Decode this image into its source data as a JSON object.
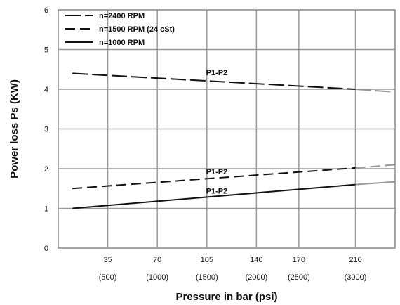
{
  "chart_data": {
    "type": "line",
    "xlabel": "Pressure in bar (psi)",
    "ylabel": "Power loss Ps (KW)",
    "xlim": [
      0,
      238
    ],
    "ylim": [
      0,
      6
    ],
    "grid": true,
    "legend_position": "top-left",
    "x_ticks": [
      {
        "value": 35,
        "label": "35",
        "sublabel": "(500)"
      },
      {
        "value": 70,
        "label": "70",
        "sublabel": "(1000)"
      },
      {
        "value": 105,
        "label": "105",
        "sublabel": "(1500)"
      },
      {
        "value": 140,
        "label": "140",
        "sublabel": "(2000)"
      },
      {
        "value": 170,
        "label": "170",
        "sublabel": "(2500)"
      },
      {
        "value": 210,
        "label": "210",
        "sublabel": "(3000)"
      }
    ],
    "y_ticks": [
      0,
      1,
      2,
      3,
      4,
      5,
      6
    ],
    "series": [
      {
        "name": "n=2400 RPM",
        "style": "dash-long",
        "color": "#111111",
        "x": [
          10,
          210
        ],
        "y": [
          4.4,
          4.0
        ],
        "extension": {
          "x": [
            210,
            238
          ],
          "y": [
            4.0,
            3.93
          ],
          "color": "#999999"
        }
      },
      {
        "name": "n=1500 RPM  (24 cSt)",
        "style": "dash",
        "color": "#111111",
        "x": [
          10,
          210
        ],
        "y": [
          1.5,
          2.02
        ],
        "extension": {
          "x": [
            210,
            238
          ],
          "y": [
            2.02,
            2.1
          ],
          "color": "#999999"
        }
      },
      {
        "name": "n=1000 RPM",
        "style": "solid",
        "color": "#111111",
        "x": [
          10,
          210
        ],
        "y": [
          1.0,
          1.6
        ],
        "extension": {
          "x": [
            210,
            238
          ],
          "y": [
            1.6,
            1.67
          ],
          "color": "#999999"
        }
      }
    ],
    "annotations": [
      {
        "text": "P1-P2",
        "x": 112,
        "y": 4.35
      },
      {
        "text": "P1-P2",
        "x": 112,
        "y": 1.86
      },
      {
        "text": "P1-P2",
        "x": 112,
        "y": 1.37
      }
    ]
  }
}
